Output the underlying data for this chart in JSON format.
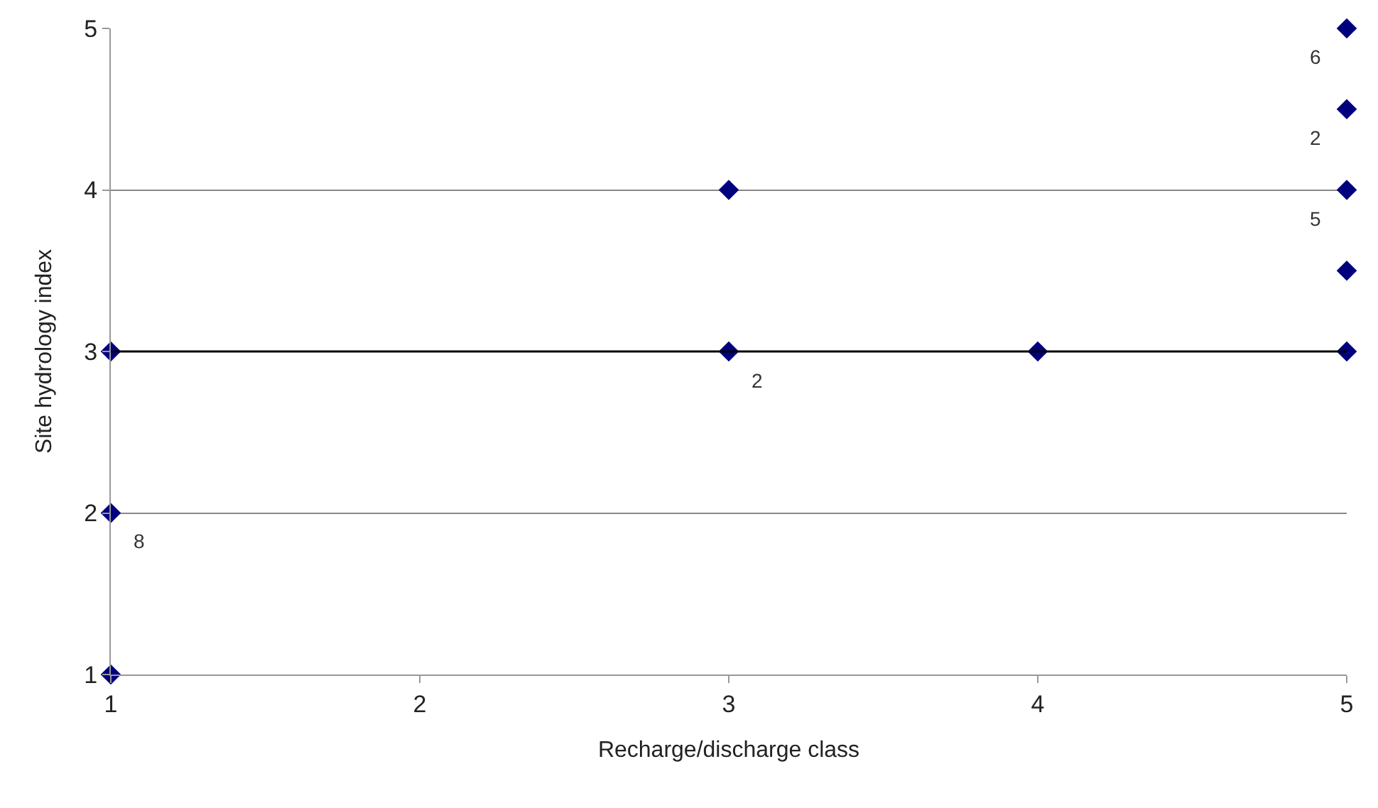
{
  "chart_data": {
    "type": "scatter",
    "xlabel": "Recharge/discharge class",
    "ylabel": "Site hydrology index",
    "x": [
      1,
      1,
      1,
      3,
      3,
      4,
      5,
      5,
      5,
      5,
      5
    ],
    "series": [
      {
        "color": "#00007f",
        "values": [
          1,
          2,
          3,
          3,
          4,
          3,
          3,
          3.5,
          4,
          4.5,
          5
        ]
      }
    ],
    "xlim": [
      1,
      5
    ],
    "xticks": [
      1,
      2,
      3,
      4,
      5
    ],
    "ylim": [
      1,
      5
    ],
    "yticks": [
      1,
      2,
      3,
      4,
      5
    ],
    "grid": "y",
    "marker": "diamond",
    "ref_lines": [
      {
        "axis": "y",
        "value": 3,
        "color": "#000000"
      }
    ],
    "annotations": [
      {
        "text": "8",
        "x": 1,
        "y": 2
      },
      {
        "text": "2",
        "x": 3,
        "y": 3
      },
      {
        "text": "6",
        "x": 5,
        "y": 5
      },
      {
        "text": "2",
        "x": 5,
        "y": 4.5
      },
      {
        "text": "5",
        "x": 5,
        "y": 4
      }
    ]
  }
}
